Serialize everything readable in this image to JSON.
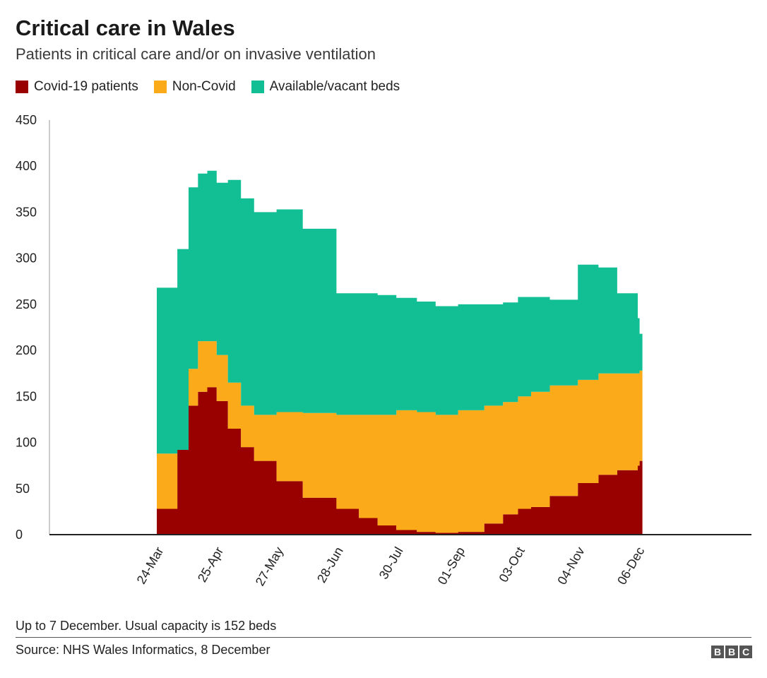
{
  "title": "Critical care in Wales",
  "subtitle": "Patients in critical care and/or on invasive ventilation",
  "footnote": "Up to 7 December. Usual capacity is 152 beds",
  "source": "Source: NHS Wales Informatics, 8 December",
  "logo": [
    "B",
    "B",
    "C"
  ],
  "colors": {
    "covid": "#990000",
    "noncovid": "#fbaa19",
    "available": "#12bf95",
    "axis": "#222222"
  },
  "chart_data": {
    "type": "area",
    "stacked": true,
    "title": "Critical care in Wales",
    "subtitle": "Patients in critical care and/or on invasive ventilation",
    "xlabel": "",
    "ylabel": "",
    "ylim": [
      0,
      450
    ],
    "yticks": [
      0,
      50,
      100,
      150,
      200,
      250,
      300,
      350,
      400,
      450
    ],
    "xtick_labels": [
      "24-Mar",
      "25-Apr",
      "27-May",
      "28-Jun",
      "30-Jul",
      "01-Sep",
      "03-Oct",
      "04-Nov",
      "06-Dec"
    ],
    "legend_position": "top-left",
    "grid": false,
    "series": [
      {
        "name": "Covid-19 patients",
        "color": "#990000",
        "x": [
          "24-Mar",
          "04-Apr",
          "10-Apr",
          "15-Apr",
          "20-Apr",
          "25-Apr",
          "01-May",
          "08-May",
          "15-May",
          "27-May",
          "10-Jun",
          "28-Jun",
          "10-Jul",
          "20-Jul",
          "30-Jul",
          "10-Aug",
          "20-Aug",
          "01-Sep",
          "15-Sep",
          "25-Sep",
          "03-Oct",
          "10-Oct",
          "20-Oct",
          "04-Nov",
          "15-Nov",
          "25-Nov",
          "06-Dec",
          "07-Dec"
        ],
        "values": [
          28,
          92,
          140,
          155,
          160,
          145,
          115,
          95,
          80,
          58,
          40,
          28,
          18,
          10,
          5,
          3,
          2,
          3,
          12,
          22,
          28,
          30,
          42,
          56,
          65,
          70,
          75,
          80
        ]
      },
      {
        "name": "Non-Covid",
        "color": "#fbaa19",
        "x": [
          "24-Mar",
          "04-Apr",
          "10-Apr",
          "15-Apr",
          "20-Apr",
          "25-Apr",
          "01-May",
          "08-May",
          "15-May",
          "27-May",
          "10-Jun",
          "28-Jun",
          "10-Jul",
          "20-Jul",
          "30-Jul",
          "10-Aug",
          "20-Aug",
          "01-Sep",
          "15-Sep",
          "25-Sep",
          "03-Oct",
          "10-Oct",
          "20-Oct",
          "04-Nov",
          "15-Nov",
          "25-Nov",
          "06-Dec",
          "07-Dec"
        ],
        "values": [
          60,
          0,
          40,
          55,
          50,
          50,
          50,
          45,
          50,
          75,
          92,
          102,
          112,
          120,
          130,
          130,
          128,
          132,
          128,
          122,
          122,
          125,
          120,
          112,
          110,
          105,
          100,
          98
        ]
      },
      {
        "name": "Available/vacant beds",
        "color": "#12bf95",
        "x": [
          "24-Mar",
          "04-Apr",
          "10-Apr",
          "15-Apr",
          "20-Apr",
          "25-Apr",
          "01-May",
          "08-May",
          "15-May",
          "27-May",
          "10-Jun",
          "28-Jun",
          "10-Jul",
          "20-Jul",
          "30-Jul",
          "10-Aug",
          "20-Aug",
          "01-Sep",
          "15-Sep",
          "25-Sep",
          "03-Oct",
          "10-Oct",
          "20-Oct",
          "04-Nov",
          "15-Nov",
          "25-Nov",
          "06-Dec",
          "07-Dec"
        ],
        "values": [
          180,
          218,
          197,
          182,
          185,
          187,
          220,
          225,
          220,
          220,
          200,
          132,
          132,
          130,
          122,
          120,
          118,
          115,
          110,
          108,
          108,
          103,
          93,
          125,
          115,
          87,
          60,
          40
        ]
      }
    ]
  }
}
